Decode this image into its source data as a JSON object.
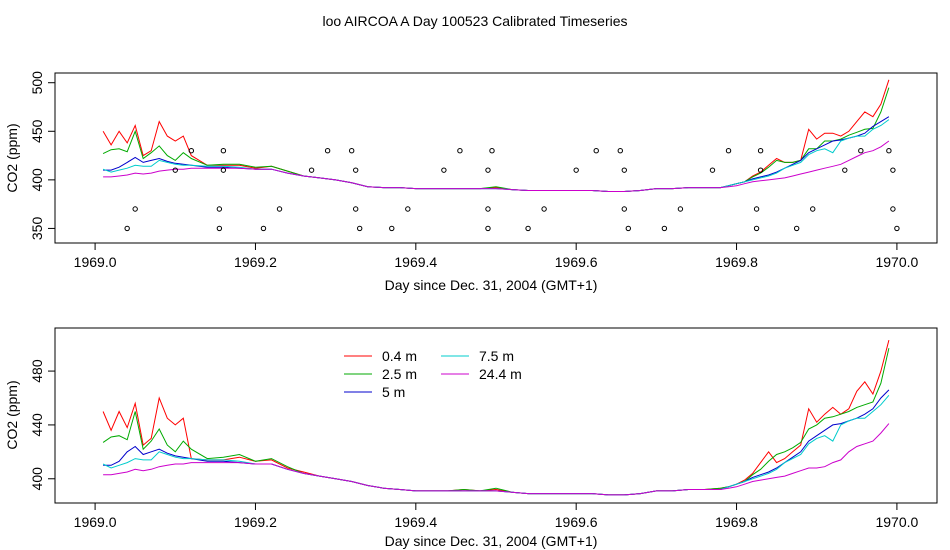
{
  "page_title": "loo AIRCOA A  Day 100523  Calibrated Timeseries",
  "chart_data": [
    {
      "type": "line",
      "title": "loo AIRCOA A  Day 100523  Calibrated Timeseries",
      "xlabel": "Day since Dec. 31, 2004 (GMT+1)",
      "ylabel": "CO2 (ppm)",
      "xlim": [
        1968.95,
        1970.05
      ],
      "ylim": [
        335,
        510
      ],
      "x_ticks": [
        "1969.0",
        "1969.2",
        "1969.4",
        "1969.6",
        "1969.8",
        "1970.0"
      ],
      "y_ticks": [
        "350",
        "400",
        "450",
        "500"
      ],
      "x": [
        1969.01,
        1969.02,
        1969.03,
        1969.04,
        1969.05,
        1969.06,
        1969.07,
        1969.08,
        1969.09,
        1969.1,
        1969.11,
        1969.12,
        1969.14,
        1969.16,
        1969.18,
        1969.2,
        1969.22,
        1969.24,
        1969.26,
        1969.28,
        1969.3,
        1969.32,
        1969.34,
        1969.36,
        1969.38,
        1969.4,
        1969.42,
        1969.44,
        1969.46,
        1969.48,
        1969.5,
        1969.52,
        1969.54,
        1969.56,
        1969.58,
        1969.6,
        1969.62,
        1969.64,
        1969.66,
        1969.68,
        1969.7,
        1969.72,
        1969.74,
        1969.76,
        1969.78,
        1969.79,
        1969.8,
        1969.81,
        1969.82,
        1969.83,
        1969.84,
        1969.85,
        1969.86,
        1969.87,
        1969.88,
        1969.89,
        1969.9,
        1969.91,
        1969.92,
        1969.93,
        1969.94,
        1969.95,
        1969.96,
        1969.97,
        1969.98,
        1969.99
      ],
      "series": [
        {
          "name": "0.4 m",
          "color": "#ff0000",
          "values": [
            450,
            436,
            450,
            438,
            456,
            425,
            430,
            460,
            445,
            440,
            445,
            425,
            415,
            415,
            415,
            412,
            414,
            409,
            404,
            402,
            400,
            397,
            393,
            392,
            392,
            391,
            391,
            391,
            391,
            391,
            392,
            390,
            389,
            389,
            389,
            389,
            389,
            388,
            388,
            389,
            391,
            391,
            392,
            392,
            392,
            394,
            396,
            398,
            404,
            408,
            415,
            422,
            418,
            418,
            420,
            452,
            442,
            448,
            448,
            445,
            450,
            460,
            470,
            465,
            478,
            503
          ]
        },
        {
          "name": "2.5 m",
          "color": "#00aa00",
          "values": [
            427,
            431,
            432,
            429,
            450,
            422,
            428,
            435,
            425,
            420,
            428,
            422,
            415,
            416,
            416,
            413,
            414,
            409,
            404,
            402,
            400,
            397,
            393,
            392,
            392,
            391,
            391,
            391,
            391,
            391,
            393,
            390,
            389,
            389,
            389,
            389,
            389,
            388,
            388,
            389,
            391,
            391,
            392,
            392,
            392,
            394,
            396,
            398,
            403,
            407,
            413,
            420,
            418,
            418,
            420,
            432,
            432,
            440,
            440,
            442,
            446,
            449,
            452,
            453,
            470,
            495
          ]
        },
        {
          "name": "5 m",
          "color": "#0000cc",
          "values": [
            410,
            410,
            413,
            418,
            423,
            418,
            420,
            422,
            419,
            417,
            416,
            415,
            413,
            413,
            412,
            411,
            411,
            407,
            404,
            402,
            400,
            397,
            393,
            392,
            392,
            391,
            391,
            391,
            391,
            391,
            391,
            390,
            389,
            389,
            389,
            389,
            389,
            388,
            388,
            389,
            391,
            391,
            392,
            392,
            392,
            394,
            396,
            398,
            401,
            403,
            405,
            408,
            412,
            416,
            420,
            428,
            432,
            436,
            440,
            441,
            443,
            445,
            448,
            455,
            460,
            465
          ]
        },
        {
          "name": "7.5 m",
          "color": "#00cccc",
          "values": [
            411,
            408,
            410,
            412,
            415,
            414,
            414,
            420,
            418,
            416,
            415,
            415,
            414,
            414,
            413,
            411,
            411,
            407,
            404,
            402,
            400,
            397,
            393,
            392,
            392,
            391,
            391,
            391,
            391,
            391,
            391,
            390,
            389,
            389,
            389,
            389,
            389,
            388,
            388,
            389,
            391,
            391,
            392,
            392,
            392,
            394,
            396,
            398,
            400,
            402,
            404,
            407,
            412,
            415,
            418,
            426,
            430,
            432,
            428,
            440,
            443,
            445,
            445,
            452,
            456,
            462
          ]
        },
        {
          "name": "24.4 m",
          "color": "#cc00cc",
          "values": [
            403,
            403,
            404,
            405,
            407,
            406,
            407,
            409,
            410,
            411,
            411,
            412,
            412,
            412,
            412,
            411,
            411,
            407,
            404,
            402,
            400,
            397,
            393,
            392,
            392,
            391,
            391,
            391,
            391,
            391,
            391,
            390,
            389,
            389,
            389,
            389,
            389,
            388,
            388,
            389,
            391,
            391,
            392,
            392,
            392,
            393,
            394,
            396,
            398,
            399,
            400,
            401,
            402,
            404,
            406,
            408,
            410,
            412,
            414,
            416,
            420,
            424,
            428,
            430,
            434,
            440
          ]
        }
      ],
      "scatter_points": [
        {
          "x": 1969.04,
          "y": 350
        },
        {
          "x": 1969.05,
          "y": 370
        },
        {
          "x": 1969.1,
          "y": 410
        },
        {
          "x": 1969.12,
          "y": 430
        },
        {
          "x": 1969.155,
          "y": 350
        },
        {
          "x": 1969.155,
          "y": 370
        },
        {
          "x": 1969.16,
          "y": 410
        },
        {
          "x": 1969.16,
          "y": 430
        },
        {
          "x": 1969.21,
          "y": 350
        },
        {
          "x": 1969.23,
          "y": 370
        },
        {
          "x": 1969.27,
          "y": 410
        },
        {
          "x": 1969.29,
          "y": 430
        },
        {
          "x": 1969.32,
          "y": 430
        },
        {
          "x": 1969.325,
          "y": 410
        },
        {
          "x": 1969.325,
          "y": 370
        },
        {
          "x": 1969.33,
          "y": 350
        },
        {
          "x": 1969.37,
          "y": 350
        },
        {
          "x": 1969.39,
          "y": 370
        },
        {
          "x": 1969.435,
          "y": 410
        },
        {
          "x": 1969.455,
          "y": 430
        },
        {
          "x": 1969.49,
          "y": 350
        },
        {
          "x": 1969.49,
          "y": 370
        },
        {
          "x": 1969.49,
          "y": 410
        },
        {
          "x": 1969.495,
          "y": 430
        },
        {
          "x": 1969.54,
          "y": 350
        },
        {
          "x": 1969.56,
          "y": 370
        },
        {
          "x": 1969.6,
          "y": 410
        },
        {
          "x": 1969.625,
          "y": 430
        },
        {
          "x": 1969.655,
          "y": 430
        },
        {
          "x": 1969.66,
          "y": 410
        },
        {
          "x": 1969.66,
          "y": 370
        },
        {
          "x": 1969.665,
          "y": 350
        },
        {
          "x": 1969.71,
          "y": 350
        },
        {
          "x": 1969.73,
          "y": 370
        },
        {
          "x": 1969.77,
          "y": 410
        },
        {
          "x": 1969.79,
          "y": 430
        },
        {
          "x": 1969.825,
          "y": 350
        },
        {
          "x": 1969.825,
          "y": 370
        },
        {
          "x": 1969.83,
          "y": 410
        },
        {
          "x": 1969.83,
          "y": 430
        },
        {
          "x": 1969.875,
          "y": 350
        },
        {
          "x": 1969.895,
          "y": 370
        },
        {
          "x": 1969.935,
          "y": 410
        },
        {
          "x": 1969.955,
          "y": 430
        },
        {
          "x": 1969.99,
          "y": 430
        },
        {
          "x": 1969.995,
          "y": 410
        },
        {
          "x": 1969.995,
          "y": 370
        },
        {
          "x": 1970.0,
          "y": 350
        }
      ]
    },
    {
      "type": "line",
      "xlabel": "Day since Dec. 31, 2004 (GMT+1)",
      "ylabel": "CO2 (ppm)",
      "xlim": [
        1968.95,
        1970.05
      ],
      "ylim": [
        382,
        512
      ],
      "x_ticks": [
        "1969.0",
        "1969.2",
        "1969.4",
        "1969.6",
        "1969.8",
        "1970.0"
      ],
      "y_ticks": [
        "400",
        "440",
        "480"
      ],
      "legend": {
        "position": "top-left",
        "columns": 2,
        "entries": [
          "0.4 m",
          "2.5 m",
          "5 m",
          "7.5 m",
          "24.4 m"
        ]
      },
      "x": [
        1969.01,
        1969.02,
        1969.03,
        1969.04,
        1969.05,
        1969.06,
        1969.07,
        1969.08,
        1969.09,
        1969.1,
        1969.11,
        1969.12,
        1969.14,
        1969.16,
        1969.18,
        1969.2,
        1969.22,
        1969.24,
        1969.26,
        1969.28,
        1969.3,
        1969.32,
        1969.34,
        1969.36,
        1969.38,
        1969.4,
        1969.42,
        1969.44,
        1969.46,
        1969.48,
        1969.5,
        1969.52,
        1969.54,
        1969.56,
        1969.58,
        1969.6,
        1969.62,
        1969.64,
        1969.66,
        1969.68,
        1969.7,
        1969.72,
        1969.74,
        1969.76,
        1969.78,
        1969.79,
        1969.8,
        1969.81,
        1969.82,
        1969.83,
        1969.84,
        1969.85,
        1969.86,
        1969.87,
        1969.88,
        1969.89,
        1969.9,
        1969.91,
        1969.92,
        1969.93,
        1969.94,
        1969.95,
        1969.96,
        1969.97,
        1969.98,
        1969.99
      ],
      "series": [
        {
          "name": "0.4 m",
          "color": "#ff0000",
          "values": [
            450,
            436,
            450,
            438,
            456,
            425,
            430,
            460,
            445,
            440,
            445,
            415,
            414,
            414,
            416,
            413,
            414,
            408,
            405,
            402,
            400,
            398,
            395,
            393,
            392,
            391,
            391,
            391,
            392,
            391,
            392,
            390,
            389,
            389,
            389,
            389,
            389,
            388,
            388,
            389,
            391,
            391,
            392,
            392,
            393,
            394,
            396,
            399,
            404,
            412,
            420,
            412,
            415,
            420,
            425,
            452,
            442,
            448,
            453,
            448,
            452,
            465,
            472,
            463,
            480,
            503
          ]
        },
        {
          "name": "2.5 m",
          "color": "#00aa00",
          "values": [
            427,
            431,
            432,
            429,
            450,
            422,
            428,
            437,
            425,
            420,
            428,
            422,
            415,
            416,
            418,
            413,
            415,
            409,
            404,
            402,
            400,
            398,
            395,
            393,
            392,
            391,
            391,
            391,
            392,
            391,
            393,
            390,
            389,
            389,
            389,
            389,
            389,
            388,
            388,
            389,
            391,
            391,
            392,
            392,
            393,
            394,
            396,
            398,
            403,
            407,
            413,
            418,
            420,
            423,
            427,
            437,
            440,
            445,
            446,
            448,
            450,
            453,
            455,
            457,
            471,
            497
          ]
        },
        {
          "name": "5 m",
          "color": "#0000cc",
          "values": [
            410,
            410,
            413,
            420,
            424,
            418,
            420,
            422,
            419,
            417,
            416,
            415,
            413,
            413,
            412,
            411,
            411,
            407,
            404,
            402,
            400,
            398,
            395,
            393,
            392,
            391,
            391,
            391,
            391,
            391,
            391,
            390,
            389,
            389,
            389,
            389,
            389,
            388,
            388,
            389,
            391,
            391,
            392,
            392,
            392,
            394,
            396,
            398,
            401,
            403,
            405,
            408,
            412,
            416,
            420,
            428,
            432,
            436,
            440,
            441,
            443,
            445,
            448,
            452,
            460,
            466
          ]
        },
        {
          "name": "7.5 m",
          "color": "#00cccc",
          "values": [
            411,
            408,
            410,
            412,
            415,
            414,
            414,
            420,
            418,
            416,
            415,
            415,
            414,
            414,
            413,
            411,
            411,
            407,
            404,
            402,
            400,
            398,
            395,
            393,
            392,
            391,
            391,
            391,
            391,
            391,
            391,
            390,
            389,
            389,
            389,
            389,
            389,
            388,
            388,
            389,
            391,
            391,
            392,
            392,
            392,
            394,
            396,
            398,
            400,
            402,
            404,
            407,
            412,
            415,
            418,
            426,
            430,
            432,
            428,
            440,
            443,
            445,
            445,
            450,
            455,
            462
          ]
        },
        {
          "name": "24.4 m",
          "color": "#cc00cc",
          "values": [
            403,
            403,
            404,
            405,
            407,
            406,
            407,
            409,
            410,
            411,
            411,
            412,
            412,
            412,
            412,
            411,
            411,
            407,
            404,
            402,
            400,
            398,
            395,
            393,
            392,
            391,
            391,
            391,
            391,
            391,
            391,
            390,
            389,
            389,
            389,
            389,
            389,
            388,
            388,
            389,
            391,
            391,
            392,
            392,
            392,
            393,
            394,
            396,
            398,
            399,
            400,
            401,
            402,
            404,
            406,
            408,
            408,
            409,
            412,
            414,
            420,
            424,
            426,
            428,
            434,
            441
          ]
        }
      ]
    }
  ]
}
